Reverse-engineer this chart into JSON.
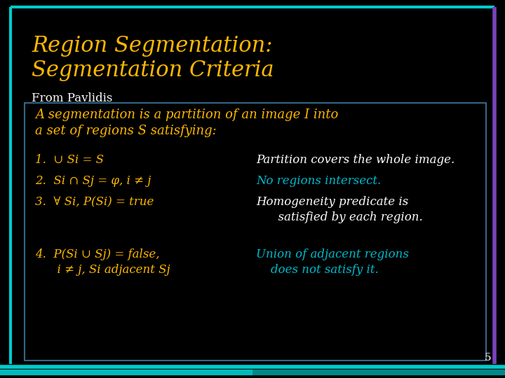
{
  "background_color": "#000000",
  "title_line1": "Region Segmentation:",
  "title_line2": "Segmentation Criteria",
  "title_color": "#FFB800",
  "title_fontsize": 22,
  "subtitle": "From Pavlidis",
  "subtitle_color": "#FFFFFF",
  "subtitle_fontsize": 12,
  "box_border_color": "#336688",
  "box_face_color": "#000000",
  "slide_border_top_color": "#00CCCC",
  "slide_border_right_color": "#7744BB",
  "slide_border_bottom_color": "#00BBBB",
  "page_number": "5",
  "page_number_color": "#FFFFFF",
  "intro_text_line1": "A segmentation is a partition of an image I into",
  "intro_text_line2": "a set of regions S satisfying:",
  "intro_color": "#FFB800",
  "item1_left": "1.  ∪ Si = S",
  "item2_left": "2.  Si ∩ Sj = φ, i ≠ j",
  "item3_left": "3.  ∀ Si, P(Si) = true",
  "item4_left1": "4.  P(Si ∪ Sj) = false,",
  "item4_left2": "      i ≠ j, Si adjacent Sj",
  "item1_right": "Partition covers the whole image.",
  "item2_right": "No regions intersect.",
  "item3_right1": "Homogeneity predicate is",
  "item3_right2": "      satisfied by each region.",
  "item4_right1": "Union of adjacent regions",
  "item4_right2": "    does not satisfy it.",
  "left_color": "#FFB800",
  "right_color_white": "#FFFFFF",
  "right_color_cyan": "#00BBCC",
  "item_fontsize": 12,
  "intro_fontsize": 13
}
